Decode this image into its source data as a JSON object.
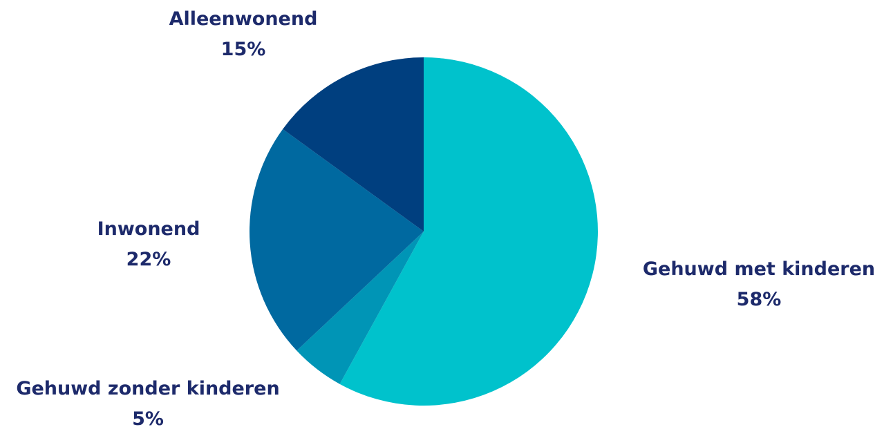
{
  "chart_data": {
    "type": "pie",
    "start_angle_deg": 0,
    "direction": "clockwise",
    "slices": [
      {
        "label": "Gehuwd met kinderen",
        "value": 58,
        "value_label": "58%",
        "color": "#00c2cc"
      },
      {
        "label": "Gehuwd zonder kinderen",
        "value": 5,
        "value_label": "5%",
        "color": "#0095b6"
      },
      {
        "label": "Inwonend",
        "value": 22,
        "value_label": "22%",
        "color": "#0069a0"
      },
      {
        "label": "Alleenwonend",
        "value": 15,
        "value_label": "15%",
        "color": "#003f7f"
      }
    ],
    "label_color": "#1d2a6b"
  }
}
